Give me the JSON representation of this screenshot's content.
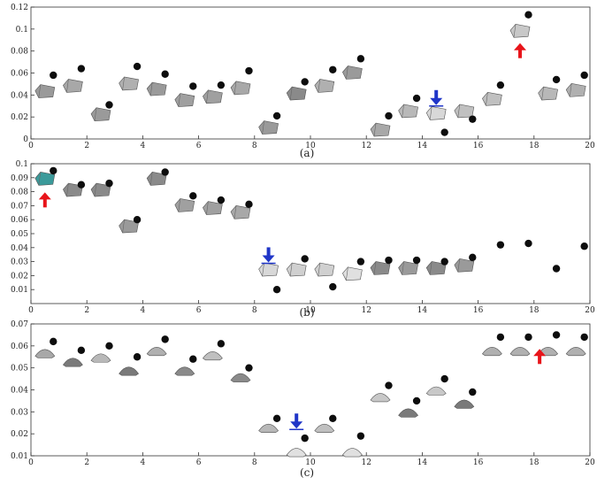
{
  "chart_data": [
    {
      "type": "scatter",
      "caption": "(a)",
      "xlim": [
        0,
        20
      ],
      "ylim": [
        0,
        0.12
      ],
      "xticks": [
        "0",
        "2",
        "4",
        "6",
        "8",
        "10",
        "12",
        "14",
        "16",
        "18",
        "20"
      ],
      "yticks": [
        "0",
        "0.02",
        "0.04",
        "0.06",
        "0.08",
        "0.1",
        "0.12"
      ],
      "points": [
        {
          "x": 0.8,
          "y": 0.058
        },
        {
          "x": 1.8,
          "y": 0.064
        },
        {
          "x": 2.8,
          "y": 0.031
        },
        {
          "x": 3.8,
          "y": 0.066
        },
        {
          "x": 4.8,
          "y": 0.059
        },
        {
          "x": 5.8,
          "y": 0.048
        },
        {
          "x": 6.8,
          "y": 0.049
        },
        {
          "x": 7.8,
          "y": 0.062
        },
        {
          "x": 8.8,
          "y": 0.021
        },
        {
          "x": 9.8,
          "y": 0.052
        },
        {
          "x": 10.8,
          "y": 0.063
        },
        {
          "x": 11.8,
          "y": 0.073
        },
        {
          "x": 12.8,
          "y": 0.021
        },
        {
          "x": 13.8,
          "y": 0.037
        },
        {
          "x": 14.8,
          "y": 0.006
        },
        {
          "x": 15.8,
          "y": 0.018
        },
        {
          "x": 16.8,
          "y": 0.049
        },
        {
          "x": 17.8,
          "y": 0.113
        },
        {
          "x": 18.8,
          "y": 0.054
        },
        {
          "x": 19.8,
          "y": 0.058
        }
      ],
      "markers": [
        {
          "x": 0.5,
          "y": 0.043,
          "shade": "#9a9a9a"
        },
        {
          "x": 1.5,
          "y": 0.048,
          "shade": "#a8a8a8"
        },
        {
          "x": 2.5,
          "y": 0.022,
          "shade": "#9a9a9a"
        },
        {
          "x": 3.5,
          "y": 0.05,
          "shade": "#b0b0b0"
        },
        {
          "x": 4.5,
          "y": 0.045,
          "shade": "#9a9a9a"
        },
        {
          "x": 5.5,
          "y": 0.035,
          "shade": "#a0a0a0"
        },
        {
          "x": 6.5,
          "y": 0.038,
          "shade": "#a0a0a0"
        },
        {
          "x": 7.5,
          "y": 0.046,
          "shade": "#a8a8a8"
        },
        {
          "x": 8.5,
          "y": 0.01,
          "shade": "#9a9a9a"
        },
        {
          "x": 9.5,
          "y": 0.041,
          "shade": "#8a8a8a"
        },
        {
          "x": 10.5,
          "y": 0.048,
          "shade": "#b0b0b0"
        },
        {
          "x": 11.5,
          "y": 0.06,
          "shade": "#9a9a9a"
        },
        {
          "x": 12.5,
          "y": 0.008,
          "shade": "#a8a8a8"
        },
        {
          "x": 13.5,
          "y": 0.025,
          "shade": "#b8b8b8"
        },
        {
          "x": 14.5,
          "y": 0.023,
          "shade": "#d8d8d8"
        },
        {
          "x": 15.5,
          "y": 0.025,
          "shade": "#c0c0c0"
        },
        {
          "x": 16.5,
          "y": 0.036,
          "shade": "#c0c0c0"
        },
        {
          "x": 17.5,
          "y": 0.098,
          "shade": "#c8c8c8"
        },
        {
          "x": 18.5,
          "y": 0.041,
          "shade": "#b8b8b8"
        },
        {
          "x": 19.5,
          "y": 0.044,
          "shade": "#b0b0b0"
        }
      ],
      "arrows": [
        {
          "x": 14.5,
          "y": 0.034,
          "dir": "down",
          "color": "#1f35c8"
        },
        {
          "x": 17.5,
          "y": 0.084,
          "dir": "up",
          "color": "#e8141a"
        }
      ]
    },
    {
      "type": "scatter",
      "caption": "(b)",
      "xlim": [
        0,
        20
      ],
      "ylim": [
        0,
        0.1
      ],
      "xticks": [
        "0",
        "2",
        "4",
        "6",
        "8",
        "10",
        "12",
        "14",
        "16",
        "18",
        "20"
      ],
      "yticks": [
        "0.01",
        "0.02",
        "0.03",
        "0.04",
        "0.05",
        "0.06",
        "0.07",
        "0.08",
        "0.09",
        "0.1"
      ],
      "points": [
        {
          "x": 0.8,
          "y": 0.095
        },
        {
          "x": 1.8,
          "y": 0.085
        },
        {
          "x": 2.8,
          "y": 0.086
        },
        {
          "x": 3.8,
          "y": 0.06
        },
        {
          "x": 4.8,
          "y": 0.094
        },
        {
          "x": 5.8,
          "y": 0.077
        },
        {
          "x": 6.8,
          "y": 0.074
        },
        {
          "x": 7.8,
          "y": 0.071
        },
        {
          "x": 8.8,
          "y": 0.01
        },
        {
          "x": 9.8,
          "y": 0.032
        },
        {
          "x": 10.8,
          "y": 0.012
        },
        {
          "x": 11.8,
          "y": 0.03
        },
        {
          "x": 12.8,
          "y": 0.031
        },
        {
          "x": 13.8,
          "y": 0.031
        },
        {
          "x": 14.8,
          "y": 0.03
        },
        {
          "x": 15.8,
          "y": 0.033
        },
        {
          "x": 16.8,
          "y": 0.042
        },
        {
          "x": 17.8,
          "y": 0.043
        },
        {
          "x": 18.8,
          "y": 0.025
        },
        {
          "x": 19.8,
          "y": 0.041
        }
      ],
      "markers": [
        {
          "x": 0.5,
          "y": 0.089,
          "shade": "#3b9a9a"
        },
        {
          "x": 1.5,
          "y": 0.081,
          "shade": "#8a8a8a"
        },
        {
          "x": 2.5,
          "y": 0.081,
          "shade": "#8a8a8a"
        },
        {
          "x": 3.5,
          "y": 0.055,
          "shade": "#9a9a9a"
        },
        {
          "x": 4.5,
          "y": 0.089,
          "shade": "#8a8a8a"
        },
        {
          "x": 5.5,
          "y": 0.07,
          "shade": "#a0a0a0"
        },
        {
          "x": 6.5,
          "y": 0.068,
          "shade": "#a0a0a0"
        },
        {
          "x": 7.5,
          "y": 0.065,
          "shade": "#a8a8a8"
        },
        {
          "x": 8.5,
          "y": 0.024,
          "shade": "#d8d8d8"
        },
        {
          "x": 9.5,
          "y": 0.024,
          "shade": "#d0d0d0"
        },
        {
          "x": 10.5,
          "y": 0.024,
          "shade": "#d0d0d0"
        },
        {
          "x": 11.5,
          "y": 0.021,
          "shade": "#e0e0e0"
        },
        {
          "x": 12.5,
          "y": 0.025,
          "shade": "#8a8a8a"
        },
        {
          "x": 13.5,
          "y": 0.025,
          "shade": "#9a9a9a"
        },
        {
          "x": 14.5,
          "y": 0.025,
          "shade": "#8a8a8a"
        },
        {
          "x": 15.5,
          "y": 0.027,
          "shade": "#9a9a9a"
        }
      ],
      "arrows": [
        {
          "x": 0.5,
          "y": 0.077,
          "dir": "up",
          "color": "#e8141a"
        },
        {
          "x": 8.5,
          "y": 0.032,
          "dir": "down",
          "color": "#1f35c8"
        }
      ]
    },
    {
      "type": "scatter",
      "caption": "(c)",
      "xlim": [
        0,
        20
      ],
      "ylim": [
        0.01,
        0.07
      ],
      "xticks": [
        "0",
        "2",
        "4",
        "6",
        "8",
        "10",
        "12",
        "14",
        "16",
        "18",
        "20"
      ],
      "yticks": [
        "0.01",
        "0.02",
        "0.03",
        "0.04",
        "0.05",
        "0.06",
        "0.07"
      ],
      "points": [
        {
          "x": 0.8,
          "y": 0.062
        },
        {
          "x": 1.8,
          "y": 0.058
        },
        {
          "x": 2.8,
          "y": 0.06
        },
        {
          "x": 3.8,
          "y": 0.055
        },
        {
          "x": 4.8,
          "y": 0.063
        },
        {
          "x": 5.8,
          "y": 0.054
        },
        {
          "x": 6.8,
          "y": 0.061
        },
        {
          "x": 7.8,
          "y": 0.05
        },
        {
          "x": 8.8,
          "y": 0.027
        },
        {
          "x": 9.8,
          "y": 0.018
        },
        {
          "x": 10.8,
          "y": 0.027
        },
        {
          "x": 11.8,
          "y": 0.019
        },
        {
          "x": 12.8,
          "y": 0.042
        },
        {
          "x": 13.8,
          "y": 0.035
        },
        {
          "x": 14.8,
          "y": 0.045
        },
        {
          "x": 15.8,
          "y": 0.039
        },
        {
          "x": 16.8,
          "y": 0.064
        },
        {
          "x": 17.8,
          "y": 0.064
        },
        {
          "x": 18.8,
          "y": 0.065
        },
        {
          "x": 19.8,
          "y": 0.064
        }
      ],
      "markers": [
        {
          "x": 0.5,
          "y": 0.057,
          "shade": "#a8a8a8"
        },
        {
          "x": 1.5,
          "y": 0.053,
          "shade": "#7a7a7a"
        },
        {
          "x": 2.5,
          "y": 0.055,
          "shade": "#b8b8b8"
        },
        {
          "x": 3.5,
          "y": 0.049,
          "shade": "#7a7a7a"
        },
        {
          "x": 4.5,
          "y": 0.058,
          "shade": "#b0b0b0"
        },
        {
          "x": 5.5,
          "y": 0.049,
          "shade": "#8a8a8a"
        },
        {
          "x": 6.5,
          "y": 0.056,
          "shade": "#c0c0c0"
        },
        {
          "x": 7.5,
          "y": 0.046,
          "shade": "#8a8a8a"
        },
        {
          "x": 8.5,
          "y": 0.023,
          "shade": "#b8b8b8"
        },
        {
          "x": 9.5,
          "y": 0.012,
          "shade": "#e0e0e0"
        },
        {
          "x": 10.5,
          "y": 0.023,
          "shade": "#c0c0c0"
        },
        {
          "x": 11.5,
          "y": 0.012,
          "shade": "#e0e0e0"
        },
        {
          "x": 12.5,
          "y": 0.037,
          "shade": "#c8c8c8"
        },
        {
          "x": 13.5,
          "y": 0.03,
          "shade": "#7a7a7a"
        },
        {
          "x": 14.5,
          "y": 0.04,
          "shade": "#c8c8c8"
        },
        {
          "x": 15.5,
          "y": 0.034,
          "shade": "#7a7a7a"
        },
        {
          "x": 16.5,
          "y": 0.058,
          "shade": "#b0b0b0"
        },
        {
          "x": 17.5,
          "y": 0.058,
          "shade": "#b0b0b0"
        },
        {
          "x": 18.5,
          "y": 0.058,
          "shade": "#b0b0b0"
        },
        {
          "x": 19.5,
          "y": 0.058,
          "shade": "#b0b0b0"
        }
      ],
      "arrows": [
        {
          "x": 9.5,
          "y": 0.024,
          "dir": "down",
          "color": "#1f35c8"
        },
        {
          "x": 18.2,
          "y": 0.057,
          "dir": "up",
          "color": "#e8141a"
        }
      ]
    }
  ]
}
